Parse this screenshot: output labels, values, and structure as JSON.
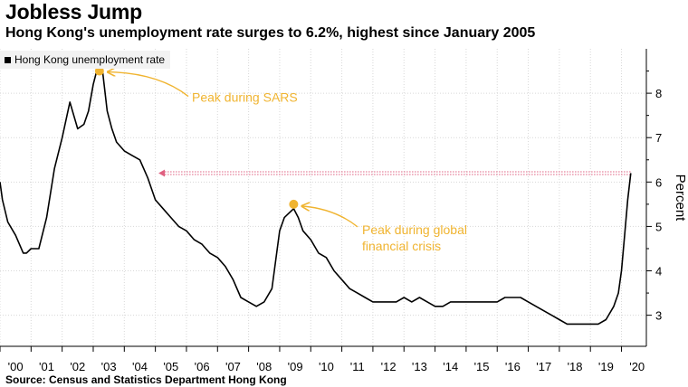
{
  "header": {
    "title": "Jobless Jump",
    "subtitle": "Hong Kong's unemployment rate surges to 6.2%, highest since January 2005"
  },
  "footer": {
    "source": "Source: Census and Statistics Department Hong Kong"
  },
  "colors": {
    "line": "#000000",
    "annotation": "#f0b430",
    "reference": "#e06080"
  },
  "chart_data": {
    "type": "line",
    "title": "",
    "xlabel": "",
    "ylabel": "Percent",
    "legend": {
      "entries": [
        "Hong Kong unemployment rate"
      ],
      "placement": "top-left"
    },
    "xlim": [
      2000,
      2020.8
    ],
    "ylim": [
      2.3,
      9.0
    ],
    "y_ticks": [
      3,
      4,
      5,
      6,
      7,
      8
    ],
    "x_ticks": [
      {
        "year": 2000,
        "label": "'00"
      },
      {
        "year": 2001,
        "label": "'01"
      },
      {
        "year": 2002,
        "label": "'02"
      },
      {
        "year": 2003,
        "label": "'03"
      },
      {
        "year": 2004,
        "label": "'04"
      },
      {
        "year": 2005,
        "label": "'05"
      },
      {
        "year": 2006,
        "label": "'06"
      },
      {
        "year": 2007,
        "label": "'07"
      },
      {
        "year": 2008,
        "label": "'08"
      },
      {
        "year": 2009,
        "label": "'09"
      },
      {
        "year": 2010,
        "label": "'10"
      },
      {
        "year": 2011,
        "label": "'11"
      },
      {
        "year": 2012,
        "label": "'12"
      },
      {
        "year": 2013,
        "label": "'13"
      },
      {
        "year": 2014,
        "label": "'14"
      },
      {
        "year": 2015,
        "label": "'15"
      },
      {
        "year": 2016,
        "label": "'16"
      },
      {
        "year": 2017,
        "label": "'17"
      },
      {
        "year": 2018,
        "label": "'18"
      },
      {
        "year": 2019,
        "label": "'19"
      },
      {
        "year": 2020,
        "label": "'20"
      }
    ],
    "grid": true,
    "series": [
      {
        "name": "Hong Kong unemployment rate",
        "x": [
          2000.0,
          2000.08,
          2000.25,
          2000.5,
          2000.75,
          2000.85,
          2001.0,
          2001.25,
          2001.5,
          2001.75,
          2002.0,
          2002.25,
          2002.5,
          2002.7,
          2002.85,
          2003.0,
          2003.15,
          2003.3,
          2003.45,
          2003.6,
          2003.75,
          2004.0,
          2004.25,
          2004.5,
          2004.75,
          2005.0,
          2005.25,
          2005.5,
          2005.75,
          2006.0,
          2006.25,
          2006.5,
          2006.75,
          2007.0,
          2007.25,
          2007.5,
          2007.75,
          2008.0,
          2008.25,
          2008.5,
          2008.75,
          2009.0,
          2009.15,
          2009.3,
          2009.45,
          2009.6,
          2009.75,
          2010.0,
          2010.25,
          2010.5,
          2010.75,
          2011.0,
          2011.25,
          2011.5,
          2011.75,
          2012.0,
          2012.25,
          2012.5,
          2012.75,
          2013.0,
          2013.25,
          2013.5,
          2013.75,
          2014.0,
          2014.25,
          2014.5,
          2014.75,
          2015.0,
          2015.25,
          2015.5,
          2015.75,
          2016.0,
          2016.25,
          2016.5,
          2016.75,
          2017.0,
          2017.25,
          2017.5,
          2017.75,
          2018.0,
          2018.25,
          2018.5,
          2018.75,
          2019.0,
          2019.25,
          2019.5,
          2019.75,
          2019.9,
          2020.0,
          2020.1,
          2020.2,
          2020.3
        ],
        "values": [
          6.0,
          5.6,
          5.1,
          4.8,
          4.4,
          4.4,
          4.5,
          4.5,
          5.2,
          6.3,
          7.0,
          7.8,
          7.2,
          7.3,
          7.6,
          8.2,
          8.6,
          8.5,
          7.6,
          7.2,
          6.9,
          6.7,
          6.6,
          6.5,
          6.1,
          5.6,
          5.4,
          5.2,
          5.0,
          4.9,
          4.7,
          4.6,
          4.4,
          4.3,
          4.1,
          3.8,
          3.4,
          3.3,
          3.2,
          3.3,
          3.6,
          4.9,
          5.2,
          5.3,
          5.4,
          5.2,
          4.9,
          4.7,
          4.4,
          4.3,
          4.0,
          3.8,
          3.6,
          3.5,
          3.4,
          3.3,
          3.3,
          3.3,
          3.3,
          3.4,
          3.3,
          3.4,
          3.3,
          3.2,
          3.2,
          3.3,
          3.3,
          3.3,
          3.3,
          3.3,
          3.3,
          3.3,
          3.4,
          3.4,
          3.4,
          3.3,
          3.2,
          3.1,
          3.0,
          2.9,
          2.8,
          2.8,
          2.8,
          2.8,
          2.8,
          2.9,
          3.2,
          3.5,
          4.0,
          4.8,
          5.6,
          6.2
        ]
      }
    ],
    "annotations": [
      {
        "text": "Peak during SARS",
        "x": 2003.2,
        "y": 8.5
      },
      {
        "text": "Peak during global financial crisis",
        "x": 2009.45,
        "y": 5.5
      }
    ],
    "reference_line": {
      "y": 6.2,
      "x_from": 2005.1,
      "x_to": 2020.3
    }
  }
}
